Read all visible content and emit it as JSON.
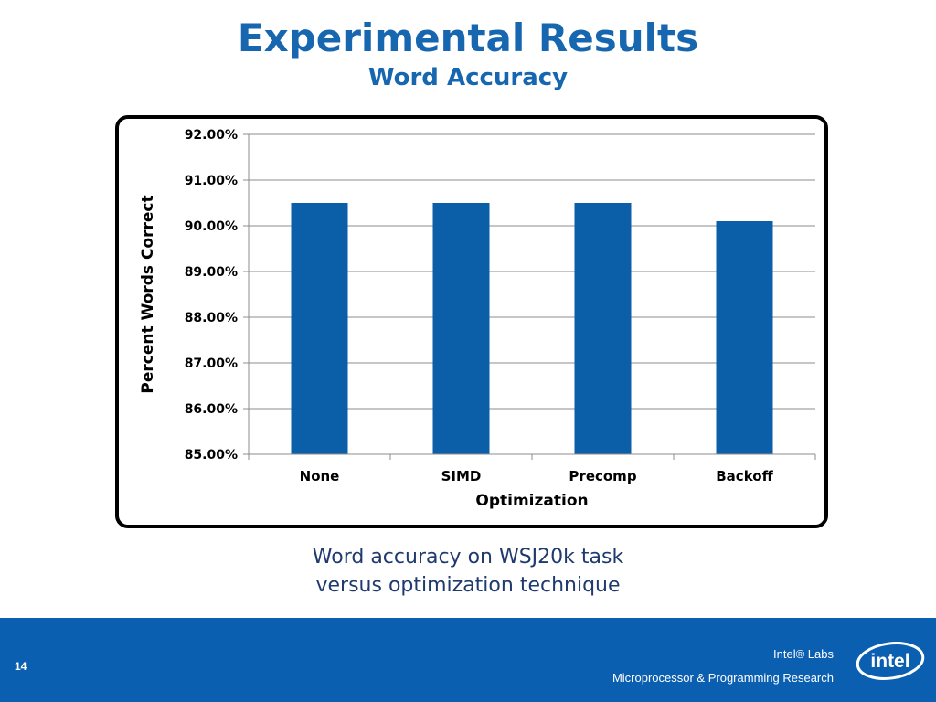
{
  "slide": {
    "title": "Experimental Results",
    "subtitle": "Word Accuracy",
    "caption_line1": "Word accuracy on WSJ20k task",
    "caption_line2": "versus optimization technique",
    "page_number": "14",
    "lab_name": "Intel® Labs",
    "lab_dept": "Microprocessor & Programming Research",
    "logo_text": "intel"
  },
  "colors": {
    "title": "#1666b0",
    "bar": "#0b5ea8",
    "footer": "#0a5fb0"
  },
  "chart_data": {
    "type": "bar",
    "categories": [
      "None",
      "SIMD",
      "Precomp",
      "Backoff"
    ],
    "values": [
      90.5,
      90.5,
      90.5,
      90.1
    ],
    "xlabel": "Optimization",
    "ylabel": "Percent Words Correct",
    "ylim": [
      85,
      92
    ],
    "yticks": [
      85,
      86,
      87,
      88,
      89,
      90,
      91,
      92
    ],
    "ytick_labels": [
      "85.00%",
      "86.00%",
      "87.00%",
      "88.00%",
      "89.00%",
      "90.00%",
      "91.00%",
      "92.00%"
    ],
    "grid": true,
    "legend": "none"
  }
}
